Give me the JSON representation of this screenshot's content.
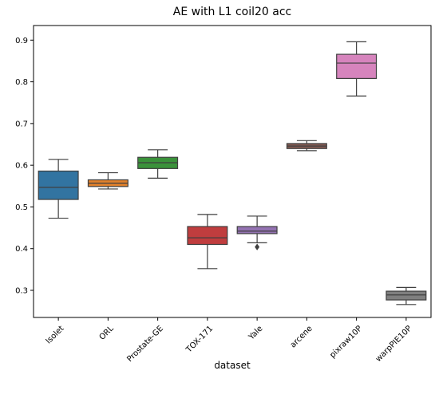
{
  "chart_data": {
    "type": "box",
    "title": "AE with L1 coil20 acc",
    "xlabel": "dataset",
    "ylabel": "",
    "ylim": [
      0.235,
      0.935
    ],
    "yticks": [
      "0.3",
      "0.4",
      "0.5",
      "0.6",
      "0.7",
      "0.8",
      "0.9"
    ],
    "ytick_values": [
      0.3,
      0.4,
      0.5,
      0.6,
      0.7,
      0.8,
      0.9
    ],
    "grid": false,
    "categories": [
      "Isolet",
      "ORL",
      "Prostate-GE",
      "TOX-171",
      "Yale",
      "arcene",
      "pixraw10P",
      "warpPIE10P"
    ],
    "boxes": [
      {
        "whisker_low": 0.473,
        "q1": 0.518,
        "median": 0.547,
        "q3": 0.586,
        "whisker_high": 0.614,
        "outliers": [],
        "color": "#3274a1"
      },
      {
        "whisker_low": 0.543,
        "q1": 0.549,
        "median": 0.557,
        "q3": 0.565,
        "whisker_high": 0.582,
        "outliers": [],
        "color": "#e1812c"
      },
      {
        "whisker_low": 0.569,
        "q1": 0.592,
        "median": 0.606,
        "q3": 0.619,
        "whisker_high": 0.637,
        "outliers": [],
        "color": "#3a923a"
      },
      {
        "whisker_low": 0.352,
        "q1": 0.41,
        "median": 0.426,
        "q3": 0.453,
        "whisker_high": 0.482,
        "outliers": [],
        "color": "#c03d3e"
      },
      {
        "whisker_low": 0.414,
        "q1": 0.436,
        "median": 0.442,
        "q3": 0.453,
        "whisker_high": 0.478,
        "outliers": [
          0.404
        ],
        "color": "#9372b2"
      },
      {
        "whisker_low": 0.635,
        "q1": 0.64,
        "median": 0.646,
        "q3": 0.652,
        "whisker_high": 0.659,
        "outliers": [],
        "color": "#845b53"
      },
      {
        "whisker_low": 0.766,
        "q1": 0.808,
        "median": 0.845,
        "q3": 0.866,
        "whisker_high": 0.896,
        "outliers": [],
        "color": "#d684bd"
      },
      {
        "whisker_low": 0.266,
        "q1": 0.277,
        "median": 0.289,
        "q3": 0.298,
        "whisker_high": 0.307,
        "outliers": [],
        "color": "#7f7f7f"
      }
    ]
  }
}
